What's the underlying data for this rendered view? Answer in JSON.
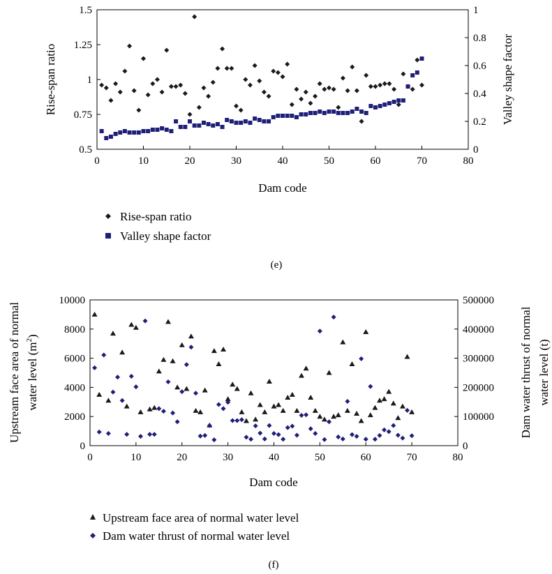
{
  "chart_data": [
    {
      "type": "scatter",
      "caption": "(e)",
      "xlabel": "Dam code",
      "ylabel": "Rise-span ratio",
      "y2label": "Valley shape factor",
      "xlim": [
        0,
        80
      ],
      "ylim": [
        0.5,
        1.5
      ],
      "y2lim": [
        0,
        1
      ],
      "xticks": [
        "0",
        "10",
        "20",
        "30",
        "40",
        "50",
        "60",
        "70",
        "80"
      ],
      "yticks": [
        "0.5",
        "0.75",
        "1",
        "1.25",
        "1.5"
      ],
      "y2ticks": [
        "0",
        "0.2",
        "0.4",
        "0.6",
        "0.8",
        "1"
      ],
      "grid": false,
      "legend_position": "bottom-left",
      "colors": {
        "Rise-span ratio": "#1a1a1a",
        "Valley shape factor": "#1f1f7a"
      },
      "series": [
        {
          "name": "Rise-span ratio",
          "marker": "diamond",
          "axis": "left",
          "x": [
            1,
            2,
            3,
            4,
            5,
            6,
            7,
            8,
            9,
            10,
            11,
            12,
            13,
            14,
            15,
            16,
            17,
            18,
            19,
            20,
            21,
            22,
            23,
            24,
            25,
            26,
            27,
            28,
            29,
            30,
            31,
            32,
            33,
            34,
            35,
            36,
            37,
            38,
            39,
            40,
            41,
            42,
            43,
            44,
            45,
            46,
            47,
            48,
            49,
            50,
            51,
            52,
            53,
            54,
            55,
            56,
            57,
            58,
            59,
            60,
            61,
            62,
            63,
            64,
            65,
            66,
            67,
            68,
            69,
            70
          ],
          "values": [
            0.96,
            0.94,
            0.85,
            0.97,
            0.91,
            1.06,
            1.24,
            0.92,
            0.78,
            1.15,
            0.89,
            0.97,
            1.0,
            0.91,
            1.21,
            0.95,
            0.95,
            0.96,
            0.9,
            0.75,
            1.45,
            0.8,
            0.94,
            0.88,
            0.98,
            1.08,
            1.22,
            1.08,
            1.08,
            0.81,
            0.78,
            1.0,
            0.96,
            1.1,
            0.99,
            0.91,
            0.88,
            1.06,
            1.05,
            1.02,
            1.11,
            0.82,
            0.93,
            0.86,
            0.91,
            0.83,
            0.88,
            0.97,
            0.93,
            0.94,
            0.93,
            0.8,
            1.01,
            0.92,
            1.09,
            0.92,
            0.7,
            1.03,
            0.95,
            0.95,
            0.96,
            0.97,
            0.97,
            0.93,
            0.82,
            1.04,
            0.95,
            0.93,
            1.14,
            0.96
          ]
        },
        {
          "name": "Valley shape factor",
          "marker": "square",
          "axis": "right",
          "x": [
            1,
            2,
            3,
            4,
            5,
            6,
            7,
            8,
            9,
            10,
            11,
            12,
            13,
            14,
            15,
            16,
            17,
            18,
            19,
            20,
            21,
            22,
            23,
            24,
            25,
            26,
            27,
            28,
            29,
            30,
            31,
            32,
            33,
            34,
            35,
            36,
            37,
            38,
            39,
            40,
            41,
            42,
            43,
            44,
            45,
            46,
            47,
            48,
            49,
            50,
            51,
            52,
            53,
            54,
            55,
            56,
            57,
            58,
            59,
            60,
            61,
            62,
            63,
            64,
            65,
            66,
            67,
            68,
            69,
            70
          ],
          "values": [
            0.13,
            0.08,
            0.09,
            0.11,
            0.12,
            0.13,
            0.12,
            0.12,
            0.12,
            0.13,
            0.13,
            0.14,
            0.14,
            0.15,
            0.14,
            0.13,
            0.2,
            0.16,
            0.16,
            0.2,
            0.17,
            0.17,
            0.19,
            0.18,
            0.17,
            0.18,
            0.16,
            0.21,
            0.2,
            0.19,
            0.19,
            0.2,
            0.19,
            0.22,
            0.21,
            0.2,
            0.2,
            0.23,
            0.24,
            0.24,
            0.24,
            0.24,
            0.23,
            0.25,
            0.25,
            0.26,
            0.26,
            0.27,
            0.26,
            0.27,
            0.27,
            0.26,
            0.26,
            0.26,
            0.27,
            0.29,
            0.27,
            0.26,
            0.31,
            0.3,
            0.31,
            0.32,
            0.33,
            0.34,
            0.35,
            0.35,
            0.45,
            0.53,
            0.55,
            0.65
          ]
        }
      ]
    },
    {
      "type": "scatter",
      "caption": "(f)",
      "xlabel": "Dam code",
      "ylabel": "Upstream face area of normal water level (m²)",
      "ylabel_line1": "Upstream face area of normal",
      "ylabel_line2_main": "water level (m",
      "ylabel_line2_sup": "2",
      "ylabel_line2_end": ")",
      "y2label": "Dam water thrust of normal water level (t)",
      "y2label_line1": "Dam water thrust of normal",
      "y2label_line2": "water level (t)",
      "xlim": [
        0,
        80
      ],
      "ylim": [
        0,
        10000
      ],
      "y2lim": [
        0,
        500000
      ],
      "xticks": [
        "0",
        "10",
        "20",
        "30",
        "40",
        "50",
        "60",
        "70",
        "80"
      ],
      "yticks": [
        "0",
        "2000",
        "4000",
        "6000",
        "8000",
        "10000"
      ],
      "y2ticks": [
        "0",
        "100000",
        "200000",
        "300000",
        "400000",
        "500000"
      ],
      "grid": false,
      "legend_position": "bottom-left",
      "colors": {
        "Upstream face area of normal water level": "#1a1a1a",
        "Dam water thrust of normal water level": "#1f1f7a"
      },
      "series": [
        {
          "name": "Upstream face area of normal water level",
          "marker": "triangle",
          "axis": "left",
          "x": [
            1,
            2,
            4,
            5,
            7,
            8,
            9,
            10,
            11,
            13,
            14,
            15,
            16,
            17,
            18,
            19,
            20,
            21,
            22,
            23,
            24,
            25,
            26,
            27,
            28,
            29,
            30,
            31,
            32,
            33,
            34,
            35,
            36,
            37,
            38,
            39,
            40,
            41,
            42,
            43,
            44,
            45,
            46,
            47,
            48,
            49,
            50,
            51,
            52,
            53,
            54,
            55,
            56,
            57,
            58,
            59,
            60,
            61,
            62,
            63,
            64,
            65,
            66,
            67,
            68,
            69,
            70
          ],
          "values": [
            9000,
            3500,
            3100,
            7700,
            6400,
            2700,
            8300,
            8100,
            2300,
            2500,
            2600,
            5100,
            5900,
            8500,
            5800,
            4000,
            6900,
            3900,
            7500,
            2400,
            2300,
            3800,
            1400,
            6500,
            5600,
            6600,
            3200,
            4200,
            3900,
            2300,
            1700,
            3600,
            1800,
            2800,
            2300,
            4400,
            2700,
            2800,
            2400,
            3300,
            3500,
            2400,
            4800,
            5300,
            3300,
            2400,
            2000,
            1800,
            5000,
            2000,
            2100,
            7100,
            2400,
            5600,
            2200,
            1700,
            7800,
            2100,
            2600,
            3100,
            3200,
            3700,
            2900,
            1900,
            2700,
            6100,
            2300
          ]
        },
        {
          "name": "Dam water thrust of normal water level",
          "marker": "diamond",
          "axis": "right",
          "x": [
            1,
            2,
            3,
            4,
            5,
            6,
            7,
            8,
            9,
            10,
            11,
            12,
            13,
            14,
            15,
            16,
            17,
            18,
            19,
            20,
            21,
            22,
            23,
            24,
            25,
            26,
            27,
            28,
            29,
            30,
            31,
            32,
            33,
            34,
            35,
            36,
            37,
            38,
            39,
            40,
            41,
            42,
            43,
            44,
            45,
            46,
            47,
            48,
            49,
            50,
            51,
            52,
            53,
            54,
            55,
            56,
            57,
            58,
            59,
            60,
            61,
            62,
            63,
            64,
            65,
            66,
            67,
            68,
            69,
            70
          ],
          "values": [
            267000,
            47000,
            311000,
            42000,
            184000,
            235000,
            155000,
            39000,
            238000,
            202000,
            32000,
            428000,
            39000,
            39000,
            127000,
            118000,
            219000,
            112000,
            82000,
            185000,
            278000,
            338000,
            180000,
            33000,
            35000,
            69000,
            20000,
            141000,
            127000,
            149000,
            86000,
            86000,
            89000,
            29000,
            22000,
            68000,
            43000,
            23000,
            69000,
            42000,
            38000,
            22000,
            62000,
            67000,
            36000,
            104000,
            106000,
            58000,
            42000,
            393000,
            21000,
            82000,
            441000,
            30000,
            23000,
            152000,
            38000,
            32000,
            298000,
            22000,
            203000,
            22000,
            35000,
            54000,
            48000,
            69000,
            36000,
            26000,
            121000,
            34000
          ]
        }
      ]
    }
  ]
}
